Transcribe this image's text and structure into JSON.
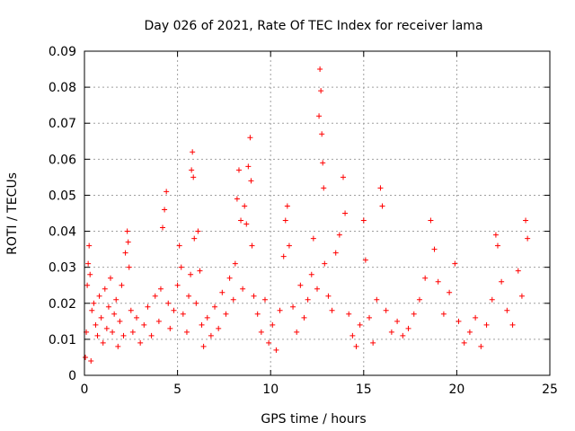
{
  "chart_data": {
    "type": "scatter",
    "title": "Day 026 of 2021, Rate Of TEC Index for receiver lama",
    "xlabel": "GPS time / hours",
    "ylabel": "ROTI / TECUs",
    "xlim": [
      0,
      25
    ],
    "ylim": [
      0,
      0.09
    ],
    "xticks": [
      "0",
      "5",
      "10",
      "15",
      "20",
      "25"
    ],
    "yticks": [
      "0",
      "0.01",
      "0.02",
      "0.03",
      "0.04",
      "0.05",
      "0.06",
      "0.07",
      "0.08",
      "0.09"
    ],
    "grid": true,
    "marker": "+",
    "series": [
      {
        "color": "#ff0000",
        "points": [
          [
            0.05,
            0.005
          ],
          [
            0.1,
            0.012
          ],
          [
            0.15,
            0.025
          ],
          [
            0.2,
            0.031
          ],
          [
            0.25,
            0.036
          ],
          [
            0.3,
            0.028
          ],
          [
            0.35,
            0.004
          ],
          [
            0.4,
            0.018
          ],
          [
            0.5,
            0.02
          ],
          [
            0.6,
            0.014
          ],
          [
            0.7,
            0.011
          ],
          [
            0.8,
            0.022
          ],
          [
            0.9,
            0.016
          ],
          [
            1.0,
            0.009
          ],
          [
            1.1,
            0.024
          ],
          [
            1.2,
            0.013
          ],
          [
            1.3,
            0.019
          ],
          [
            1.4,
            0.027
          ],
          [
            1.5,
            0.012
          ],
          [
            1.6,
            0.017
          ],
          [
            1.7,
            0.021
          ],
          [
            1.8,
            0.008
          ],
          [
            1.9,
            0.015
          ],
          [
            2.0,
            0.025
          ],
          [
            2.1,
            0.011
          ],
          [
            2.2,
            0.034
          ],
          [
            2.3,
            0.04
          ],
          [
            2.35,
            0.037
          ],
          [
            2.4,
            0.03
          ],
          [
            2.5,
            0.018
          ],
          [
            2.6,
            0.012
          ],
          [
            2.8,
            0.016
          ],
          [
            3.0,
            0.009
          ],
          [
            3.2,
            0.014
          ],
          [
            3.4,
            0.019
          ],
          [
            3.6,
            0.011
          ],
          [
            3.8,
            0.022
          ],
          [
            4.0,
            0.015
          ],
          [
            4.1,
            0.024
          ],
          [
            4.2,
            0.041
          ],
          [
            4.3,
            0.046
          ],
          [
            4.4,
            0.051
          ],
          [
            4.5,
            0.02
          ],
          [
            4.6,
            0.013
          ],
          [
            4.8,
            0.018
          ],
          [
            5.0,
            0.025
          ],
          [
            5.1,
            0.036
          ],
          [
            5.2,
            0.03
          ],
          [
            5.3,
            0.017
          ],
          [
            5.5,
            0.012
          ],
          [
            5.6,
            0.022
          ],
          [
            5.7,
            0.028
          ],
          [
            5.75,
            0.057
          ],
          [
            5.8,
            0.062
          ],
          [
            5.85,
            0.055
          ],
          [
            5.9,
            0.038
          ],
          [
            6.0,
            0.02
          ],
          [
            6.1,
            0.04
          ],
          [
            6.2,
            0.029
          ],
          [
            6.3,
            0.014
          ],
          [
            6.4,
            0.008
          ],
          [
            6.6,
            0.016
          ],
          [
            6.8,
            0.011
          ],
          [
            7.0,
            0.019
          ],
          [
            7.2,
            0.013
          ],
          [
            7.4,
            0.023
          ],
          [
            7.6,
            0.017
          ],
          [
            7.8,
            0.027
          ],
          [
            8.0,
            0.021
          ],
          [
            8.1,
            0.031
          ],
          [
            8.2,
            0.049
          ],
          [
            8.3,
            0.057
          ],
          [
            8.4,
            0.043
          ],
          [
            8.5,
            0.024
          ],
          [
            8.6,
            0.047
          ],
          [
            8.7,
            0.042
          ],
          [
            8.8,
            0.058
          ],
          [
            8.9,
            0.066
          ],
          [
            8.95,
            0.054
          ],
          [
            9.0,
            0.036
          ],
          [
            9.1,
            0.022
          ],
          [
            9.3,
            0.017
          ],
          [
            9.5,
            0.012
          ],
          [
            9.7,
            0.021
          ],
          [
            9.9,
            0.009
          ],
          [
            10.1,
            0.014
          ],
          [
            10.3,
            0.007
          ],
          [
            10.5,
            0.018
          ],
          [
            10.7,
            0.033
          ],
          [
            10.8,
            0.043
          ],
          [
            10.9,
            0.047
          ],
          [
            11.0,
            0.036
          ],
          [
            11.2,
            0.019
          ],
          [
            11.4,
            0.012
          ],
          [
            11.6,
            0.025
          ],
          [
            11.8,
            0.016
          ],
          [
            12.0,
            0.021
          ],
          [
            12.2,
            0.028
          ],
          [
            12.3,
            0.038
          ],
          [
            12.5,
            0.024
          ],
          [
            12.6,
            0.072
          ],
          [
            12.65,
            0.085
          ],
          [
            12.7,
            0.079
          ],
          [
            12.75,
            0.067
          ],
          [
            12.8,
            0.059
          ],
          [
            12.85,
            0.052
          ],
          [
            12.9,
            0.031
          ],
          [
            13.1,
            0.022
          ],
          [
            13.3,
            0.018
          ],
          [
            13.5,
            0.034
          ],
          [
            13.7,
            0.039
          ],
          [
            13.9,
            0.055
          ],
          [
            14.0,
            0.045
          ],
          [
            14.2,
            0.017
          ],
          [
            14.4,
            0.011
          ],
          [
            14.6,
            0.008
          ],
          [
            14.8,
            0.014
          ],
          [
            15.0,
            0.043
          ],
          [
            15.1,
            0.032
          ],
          [
            15.3,
            0.016
          ],
          [
            15.5,
            0.009
          ],
          [
            15.7,
            0.021
          ],
          [
            15.9,
            0.052
          ],
          [
            16.0,
            0.047
          ],
          [
            16.2,
            0.018
          ],
          [
            16.5,
            0.012
          ],
          [
            16.8,
            0.015
          ],
          [
            17.1,
            0.011
          ],
          [
            17.4,
            0.013
          ],
          [
            17.7,
            0.017
          ],
          [
            18.0,
            0.021
          ],
          [
            18.3,
            0.027
          ],
          [
            18.6,
            0.043
          ],
          [
            18.8,
            0.035
          ],
          [
            19.0,
            0.026
          ],
          [
            19.3,
            0.017
          ],
          [
            19.6,
            0.023
          ],
          [
            19.9,
            0.031
          ],
          [
            20.1,
            0.015
          ],
          [
            20.4,
            0.009
          ],
          [
            20.7,
            0.012
          ],
          [
            21.0,
            0.016
          ],
          [
            21.3,
            0.008
          ],
          [
            21.6,
            0.014
          ],
          [
            21.9,
            0.021
          ],
          [
            22.1,
            0.039
          ],
          [
            22.2,
            0.036
          ],
          [
            22.4,
            0.026
          ],
          [
            22.7,
            0.018
          ],
          [
            23.0,
            0.014
          ],
          [
            23.3,
            0.029
          ],
          [
            23.5,
            0.022
          ],
          [
            23.7,
            0.043
          ],
          [
            23.8,
            0.038
          ]
        ]
      }
    ]
  }
}
